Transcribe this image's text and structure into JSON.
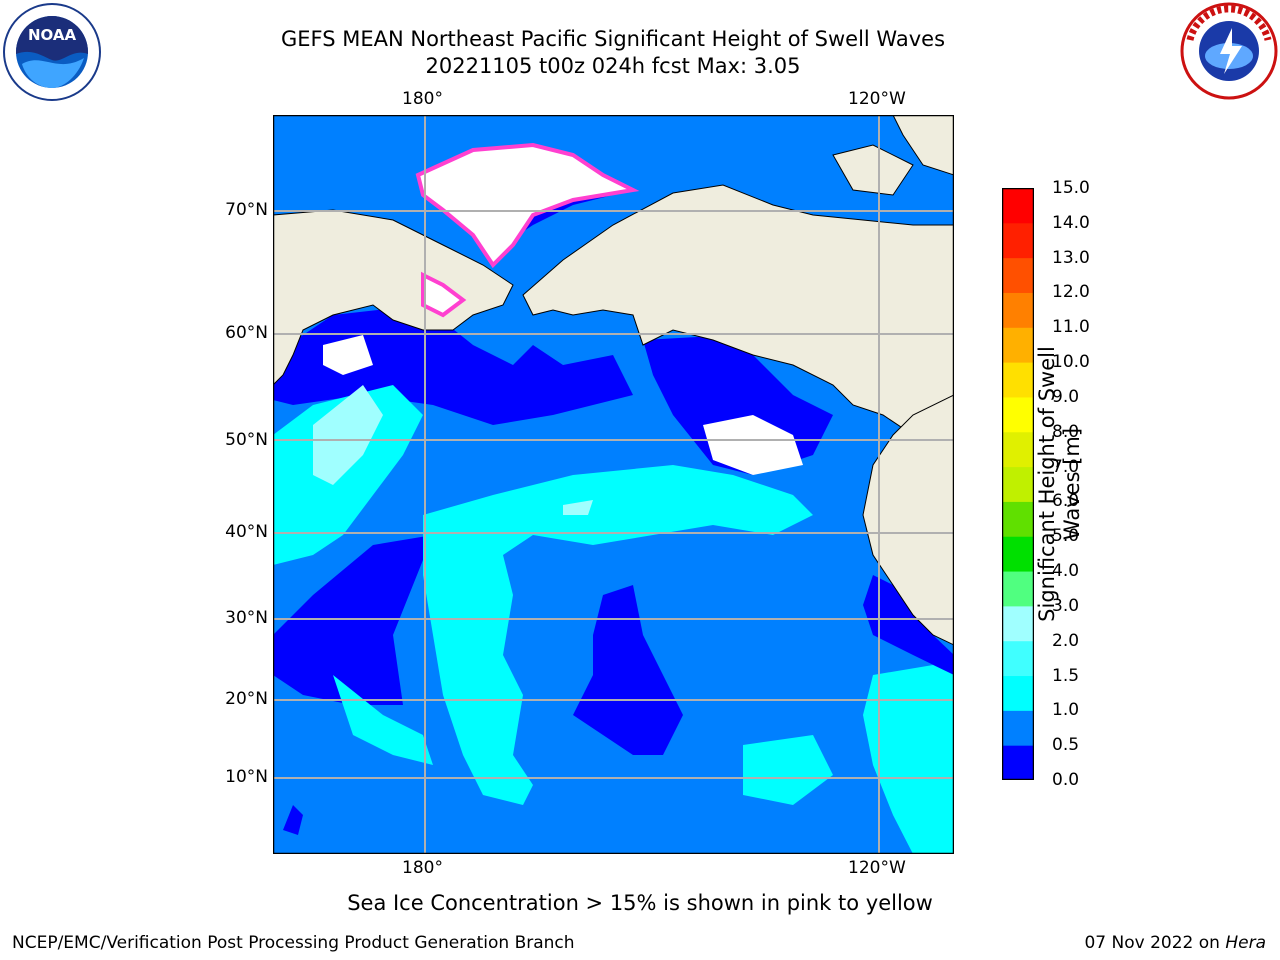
{
  "title_line1": "GEFS MEAN Northeast Pacific Significant Height of Swell Waves",
  "title_line2": "20221105 t00z 024h fcst   Max: 3.05",
  "lon_labels": [
    "180°",
    "120°W"
  ],
  "lat_labels": [
    "70°N",
    "60°N",
    "50°N",
    "40°N",
    "30°N",
    "20°N",
    "10°N"
  ],
  "colorbar": {
    "title": "Significant Height of Swell Waves [m]",
    "ticks": [
      "0.0",
      "0.5",
      "1.0",
      "1.5",
      "2.0",
      "3.0",
      "4.0",
      "5.0",
      "6.0",
      "7.0",
      "8.0",
      "9.0",
      "10.0",
      "11.0",
      "12.0",
      "13.0",
      "14.0",
      "15.0"
    ],
    "colors": [
      "#0000ff",
      "#0080ff",
      "#00ffff",
      "#40ffff",
      "#a0ffff",
      "#50ff80",
      "#00e000",
      "#60e000",
      "#c0f000",
      "#e0f000",
      "#ffff00",
      "#ffe000",
      "#ffb000",
      "#ff8000",
      "#ff5000",
      "#ff2000",
      "#ff0000"
    ]
  },
  "subtitle": "Sea Ice Concentration > 15% is shown in pink to yellow",
  "footer_left": "NCEP/EMC/Verification Post Processing Product Generation Branch",
  "footer_right_prefix": "07 Nov 2022 on ",
  "footer_right_host": "Hera",
  "logos": {
    "left_text": "NOAA",
    "right_text": "NATIONAL WEATHER SERVICE"
  },
  "colors": {
    "land": "#efedde",
    "ocean_high": "#0080ff",
    "ocean_low": "#0000ff",
    "sea_ice": "#ff40d0"
  }
}
